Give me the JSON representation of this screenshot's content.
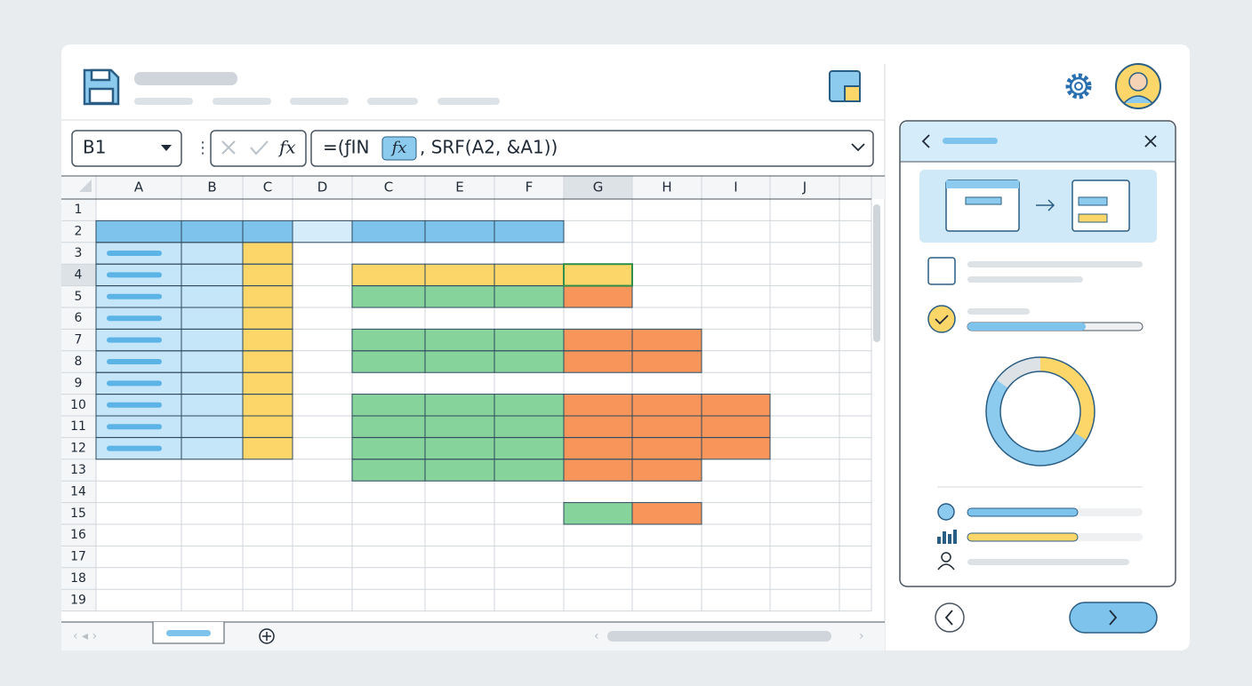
{
  "name_box": "B1",
  "formula_bar": {
    "fx_icon": "fx",
    "formula_start": "=(ƒIN",
    "formula_fx": "fx",
    "formula_end": ", SRF(A2, &A1))"
  },
  "grid": {
    "columns": [
      "A",
      "B",
      "C",
      "D",
      "C",
      "E",
      "F",
      "G",
      "H",
      "I",
      "J"
    ],
    "rows": [
      1,
      2,
      3,
      4,
      5,
      6,
      7,
      8,
      9,
      10,
      11,
      12,
      13,
      14,
      15,
      16,
      17,
      18,
      19
    ]
  }
}
